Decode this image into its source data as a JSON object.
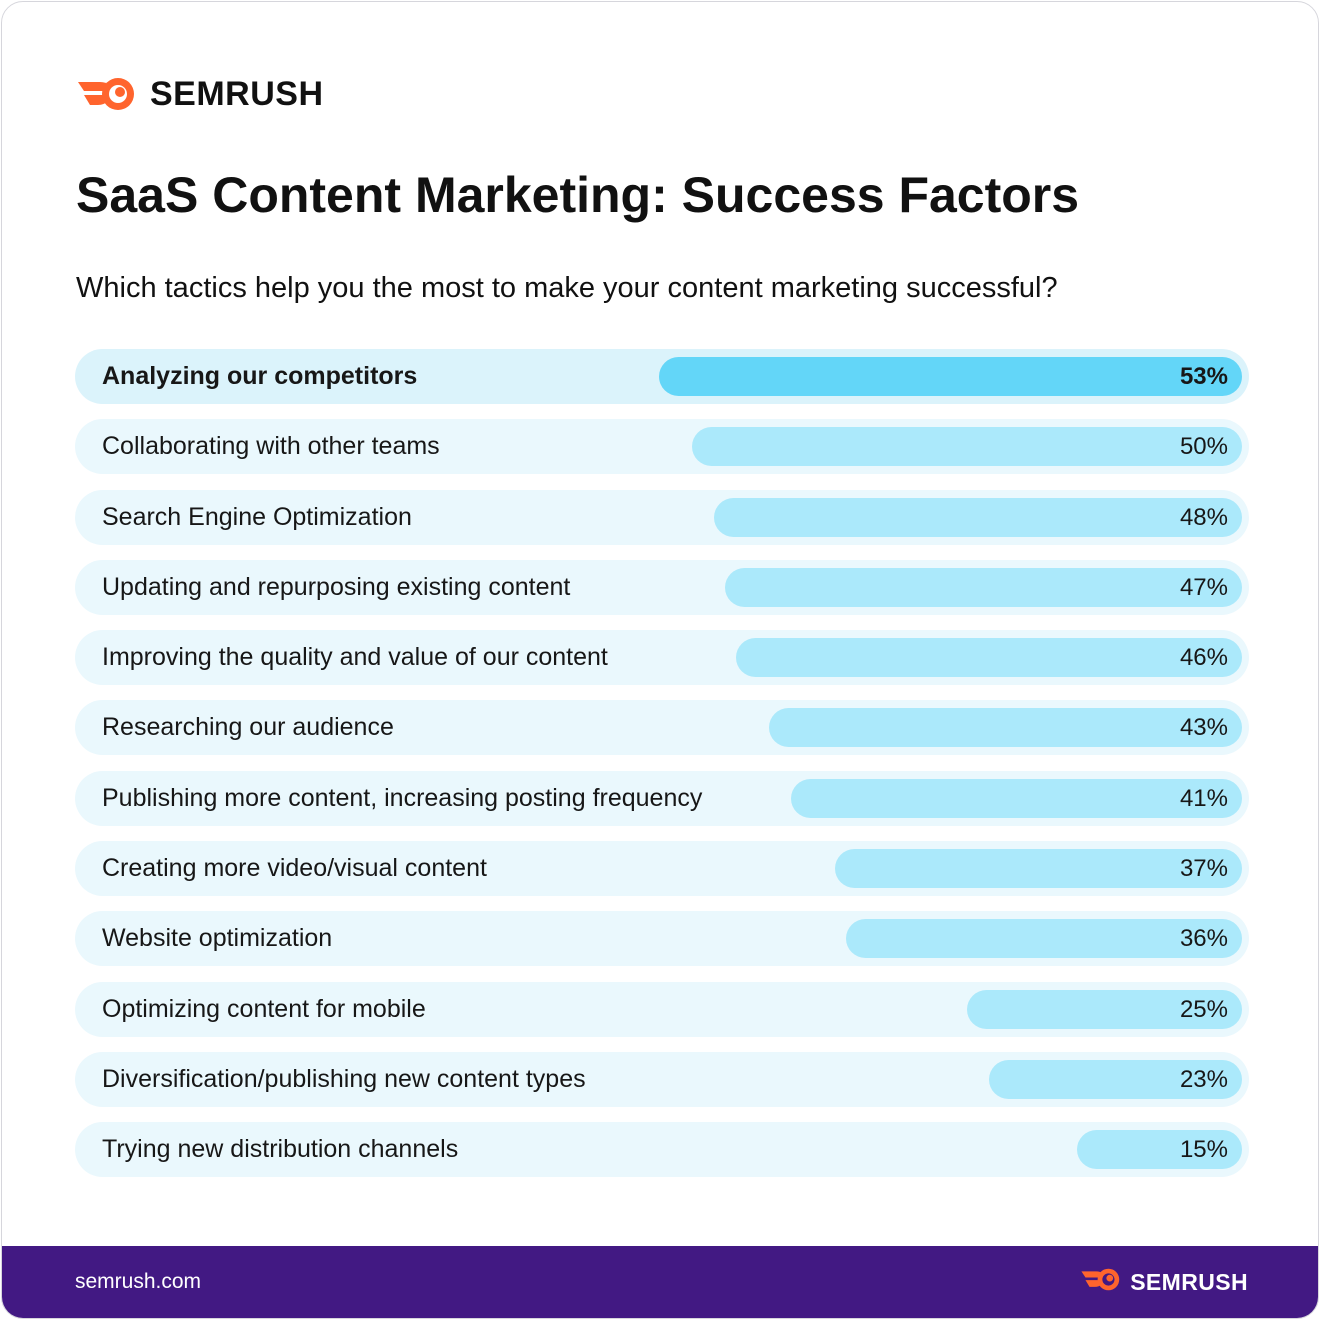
{
  "brand": {
    "name": "SEMRUSH",
    "icon": "semrush-flame-icon",
    "accent": "#ff642d"
  },
  "title": "SaaS Content Marketing: Success Factors",
  "subtitle": "Which tactics help you the most to make your content marketing successful?",
  "chart_data": {
    "type": "bar",
    "orientation": "horizontal",
    "title": "SaaS Content Marketing: Success Factors",
    "subtitle": "Which tactics help you the most to make your content marketing successful?",
    "xlabel": "",
    "ylabel": "",
    "value_suffix": "%",
    "xlim": [
      0,
      100
    ],
    "grid": false,
    "colors": {
      "highlight": "#63d6f8",
      "bar": "#abe9fb",
      "track": "#eaf8fd"
    },
    "categories": [
      "Analyzing our competitors",
      "Collaborating with other teams",
      "Search Engine Optimization",
      "Updating and repurposing existing content",
      "Improving the quality and value of our content",
      "Researching our audience",
      "Publishing more content, increasing posting frequency",
      "Creating more video/visual content",
      "Website optimization",
      "Optimizing content for mobile",
      "Diversification/publishing new content types",
      "Trying new distribution channels"
    ],
    "values": [
      53,
      50,
      48,
      47,
      46,
      43,
      41,
      37,
      36,
      25,
      23,
      15
    ],
    "value_labels": [
      "53%",
      "50%",
      "48%",
      "47%",
      "46%",
      "43%",
      "41%",
      "37%",
      "36%",
      "25%",
      "23%",
      "15%"
    ]
  },
  "footer": {
    "url": "semrush.com",
    "brand": "SEMRUSH",
    "background": "#421983"
  }
}
